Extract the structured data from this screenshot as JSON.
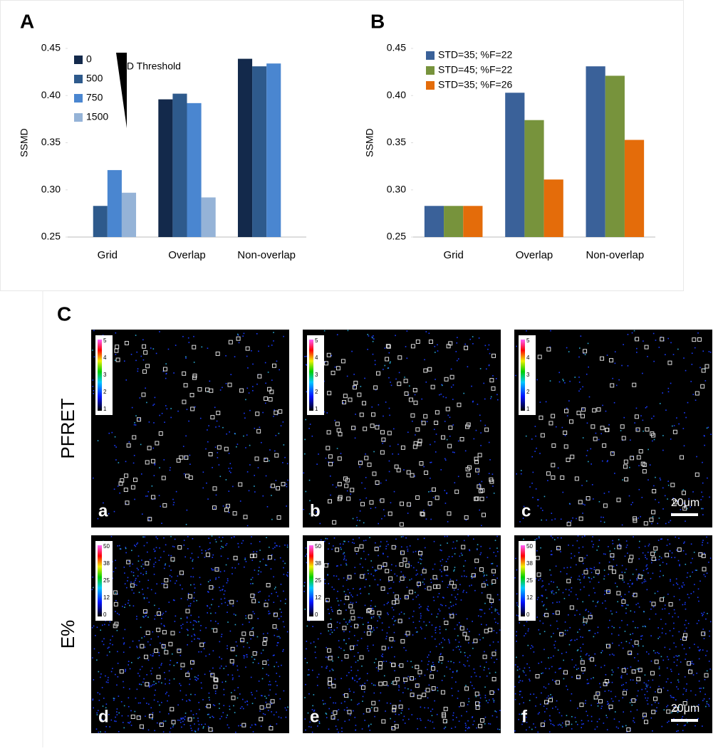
{
  "chart_data": [
    {
      "type": "bar",
      "panel_label": "A",
      "y_label": "SSMD",
      "annotation": "ID Threshold",
      "categories": [
        "Grid",
        "Overlap",
        "Non-overlap"
      ],
      "series": [
        {
          "name": "0",
          "color": "#13294b",
          "values": [
            0.25,
            0.396,
            0.439
          ]
        },
        {
          "name": "500",
          "color": "#2e5a8c",
          "values": [
            0.283,
            0.402,
            0.431
          ]
        },
        {
          "name": "750",
          "color": "#4a86d0",
          "values": [
            0.321,
            0.392,
            0.434
          ]
        },
        {
          "name": "1500",
          "color": "#95b3d7",
          "values": [
            0.297,
            0.292,
            0.25
          ]
        }
      ],
      "ylim": [
        0.25,
        0.45
      ],
      "yticks": [
        0.25,
        {
          "value": 0.3,
          "label": "0.30"
        },
        0.35,
        {
          "value": 0.4,
          "label": "0.40"
        },
        0.45
      ],
      "legend": "top-left"
    },
    {
      "type": "bar",
      "panel_label": "B",
      "y_label": "SSMD",
      "categories": [
        "Grid",
        "Overlap",
        "Non-overlap"
      ],
      "series": [
        {
          "name": "STD=35; %F=22",
          "color": "#3a6199",
          "values": [
            0.283,
            0.403,
            0.431
          ]
        },
        {
          "name": "STD=45; %F=22",
          "color": "#77933c",
          "values": [
            0.283,
            0.374,
            0.421
          ]
        },
        {
          "name": "STD=35; %F=26",
          "color": "#e46c0a",
          "values": [
            0.283,
            0.311,
            0.353
          ]
        }
      ],
      "ylim": [
        0.25,
        0.45
      ],
      "yticks": [
        0.25,
        {
          "value": 0.3,
          "label": "0.30"
        },
        0.35,
        {
          "value": 0.4,
          "label": "0.40"
        },
        0.45
      ],
      "legend": "top-left"
    }
  ],
  "panel_c": {
    "label": "C",
    "rows": [
      {
        "label": "PFRET",
        "colorbar_ticks": [
          "5",
          "4",
          "3",
          "2",
          "1"
        ],
        "panels": [
          "a",
          "b",
          "c"
        ]
      },
      {
        "label": "E%",
        "colorbar_ticks": [
          "50",
          "38",
          "25",
          "12",
          "0"
        ],
        "panels": [
          "d",
          "e",
          "f"
        ]
      }
    ],
    "scale_bar": "20μm"
  }
}
